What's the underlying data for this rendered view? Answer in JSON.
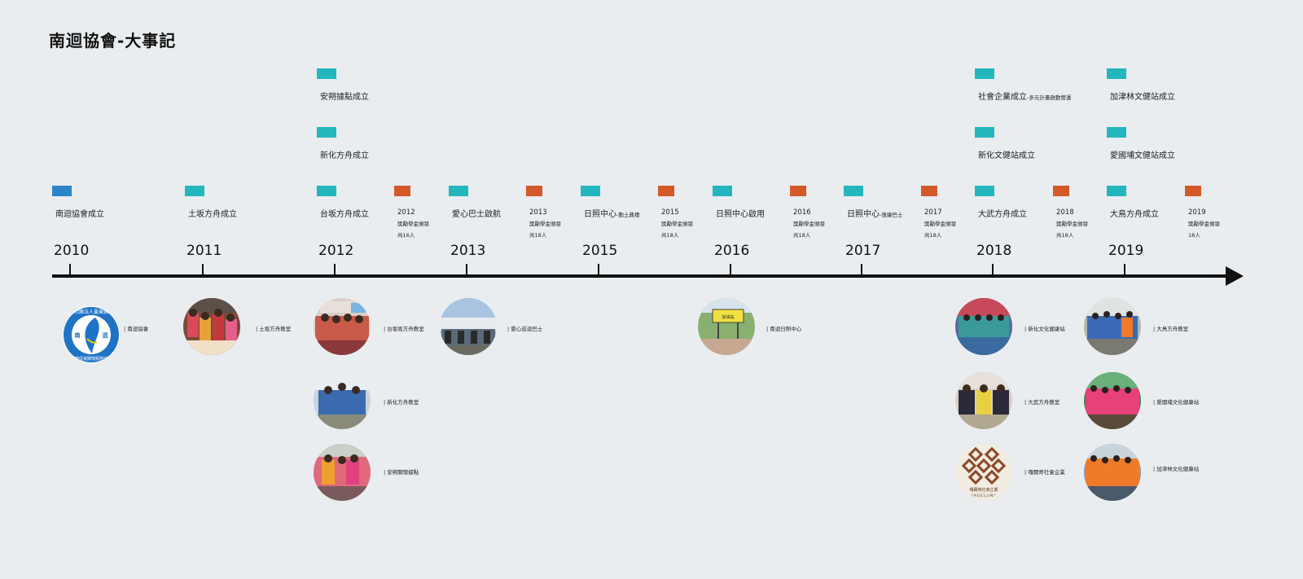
{
  "title": "南迴協會-大事記",
  "colors": {
    "blue": "#2b85c8",
    "teal": "#23b7bd",
    "orange": "#d35a28",
    "axis": "#111111"
  },
  "years": [
    "2010",
    "2011",
    "2012",
    "2013",
    "2015",
    "2016",
    "2017",
    "2018",
    "2019"
  ],
  "events_top": {
    "安朔": "安朔據點成立",
    "新化1": "新化方舟成立",
    "社會企業": "社會企業成立",
    "社會企業sub": "-多元計畫啟動營運",
    "新化文健站": "新化文健站成立",
    "加津林": "加津林文健站成立",
    "愛國埔": "愛國埔文健站成立"
  },
  "events_axis": [
    {
      "main": "南迴協會成立",
      "sub": ""
    },
    {
      "main": "土坂方舟成立",
      "sub": ""
    },
    {
      "main": "台坂方舟成立",
      "sub": ""
    },
    {
      "main": "愛心巴士啟航",
      "sub": ""
    },
    {
      "main": "日照中心",
      "sub": "-動土典禮"
    },
    {
      "main": "日照中心啟用",
      "sub": ""
    },
    {
      "main": "日照中心",
      "sub": "-復康巴士"
    },
    {
      "main": "大武方舟成立",
      "sub": ""
    },
    {
      "main": "大鳥方舟成立",
      "sub": ""
    }
  ],
  "scholarships": [
    {
      "year": "2012",
      "desc": "獎勵學金頒發",
      "count": "共16人"
    },
    {
      "year": "2013",
      "desc": "獎勵學金頒發",
      "count": "共18人"
    },
    {
      "year": "2015",
      "desc": "獎勵學金頒發",
      "count": "共18人"
    },
    {
      "year": "2016",
      "desc": "獎勵學金頒發",
      "count": "共18人"
    },
    {
      "year": "2017",
      "desc": "獎勵學金頒發",
      "count": "共18人"
    },
    {
      "year": "2018",
      "desc": "獎勵學金頒發",
      "count": "共18人"
    },
    {
      "year": "2019",
      "desc": "獎勵學金頒發",
      "count": "18人"
    }
  ],
  "photos": [
    {
      "caption": "| 南迴協會"
    },
    {
      "caption": "| 土坂方舟教室"
    },
    {
      "caption": "| 台坂坂方舟教室"
    },
    {
      "caption": "| 新化方舟教室"
    },
    {
      "caption": "| 安朔關懷據點"
    },
    {
      "caption": "| 愛心巡迴巴士"
    },
    {
      "caption": "| 南迴日照中心"
    },
    {
      "caption": "| 新化文化健康站"
    },
    {
      "caption": "| 大武方舟教室"
    },
    {
      "caption": "| 嘎爾寄社會企業"
    },
    {
      "caption": "| 大鳥方舟教室"
    },
    {
      "caption": "| 愛國埔文化健康站"
    },
    {
      "caption": "| 加津林文化健康站"
    }
  ],
  "logo_text": {
    "top": "社團法人臺東縣",
    "left": "南",
    "right": "迴",
    "bottom": "健康促進關懷服務協會",
    "sign": "加油站",
    "ageljin_cn": "嘎爾寄社會企業",
    "ageljin_en": "*AGELJIN*"
  }
}
